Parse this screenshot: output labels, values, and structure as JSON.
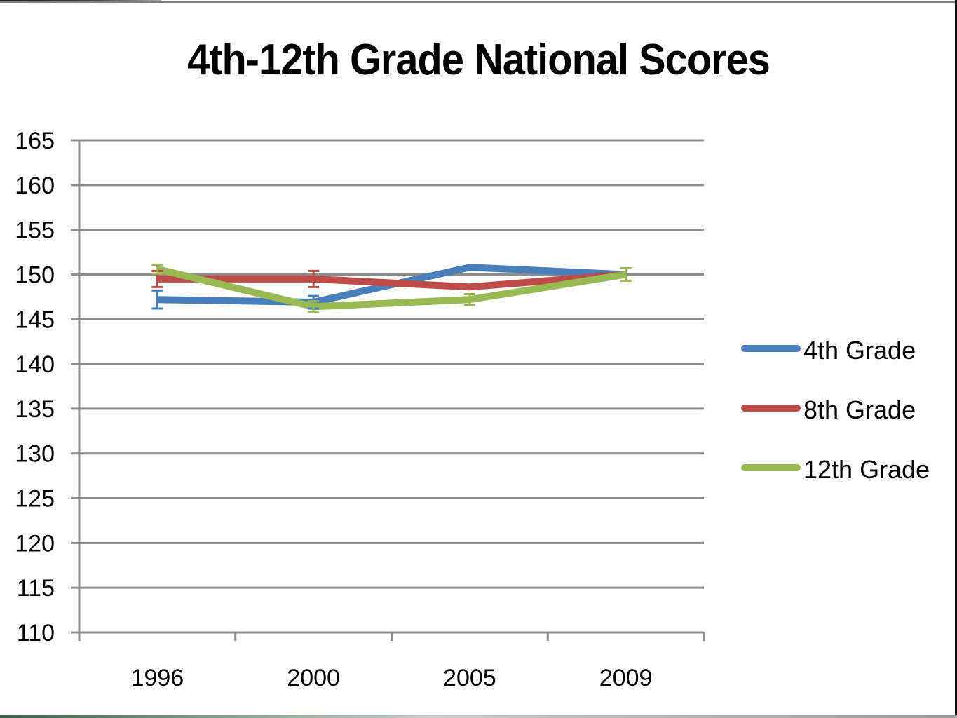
{
  "chart_data": {
    "type": "line",
    "title": "4th-12th Grade National Scores",
    "xlabel": "",
    "ylabel": "",
    "categories": [
      "1996",
      "2000",
      "2005",
      "2009"
    ],
    "ylim": [
      110,
      165
    ],
    "yticks": [
      165,
      160,
      155,
      150,
      145,
      140,
      135,
      130,
      125,
      120,
      115,
      110
    ],
    "grid": true,
    "legend_position": "right",
    "series": [
      {
        "name": "4th Grade",
        "color": "#4a7ebb",
        "values": [
          147.2,
          146.9,
          150.8,
          150.0
        ],
        "error": [
          1.0,
          0.7,
          0,
          0
        ]
      },
      {
        "name": "8th Grade",
        "color": "#be4b48",
        "values": [
          149.5,
          149.5,
          148.6,
          150.0
        ],
        "error": [
          0.9,
          0.9,
          0,
          0
        ]
      },
      {
        "name": "12th Grade",
        "color": "#98b954",
        "values": [
          150.6,
          146.4,
          147.2,
          150.0
        ],
        "error": [
          0.5,
          0.6,
          0.6,
          0.7
        ]
      }
    ]
  }
}
